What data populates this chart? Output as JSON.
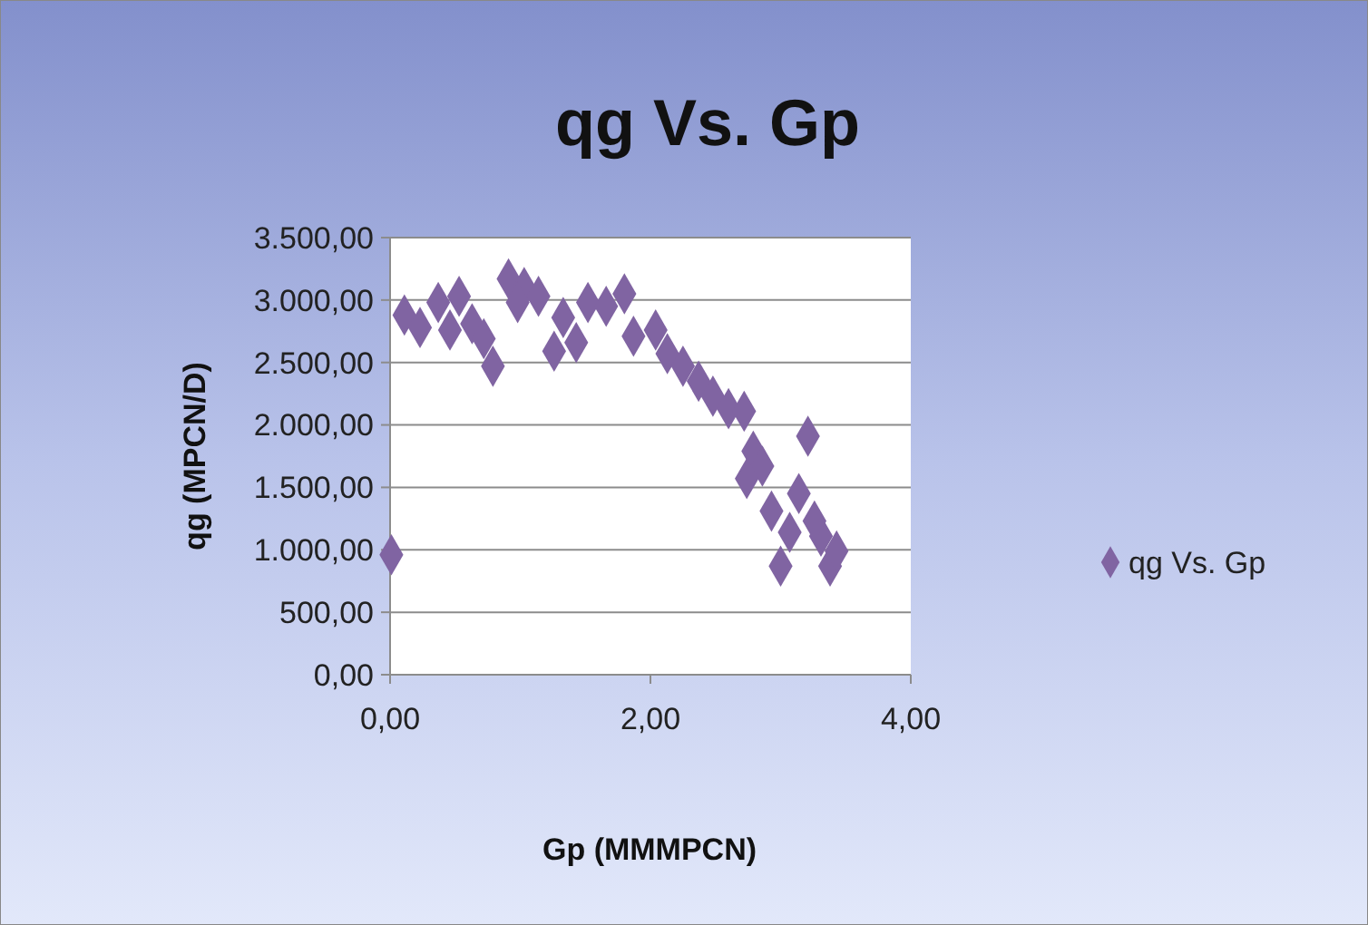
{
  "chart_data": {
    "type": "scatter",
    "title": "qg Vs. Gp",
    "xlabel": "Gp (MMMPCN)",
    "ylabel": "qg (MPCN/D)",
    "xlim": [
      0,
      4
    ],
    "xticks": [
      {
        "value": 0,
        "label": "0,00"
      },
      {
        "value": 2,
        "label": "2,00"
      },
      {
        "value": 4,
        "label": "4,00"
      }
    ],
    "ylim": [
      0,
      3500
    ],
    "yticks": [
      {
        "value": 0,
        "label": "0,00"
      },
      {
        "value": 500,
        "label": "500,00"
      },
      {
        "value": 1000,
        "label": "1.000,00"
      },
      {
        "value": 1500,
        "label": "1.500,00"
      },
      {
        "value": 2000,
        "label": "2.000,00"
      },
      {
        "value": 2500,
        "label": "2.500,00"
      },
      {
        "value": 3000,
        "label": "3.000,00"
      },
      {
        "value": 3500,
        "label": "3.500,00"
      }
    ],
    "grid": "y",
    "legend": "right",
    "marker": "diamond",
    "series": [
      {
        "name": "qg Vs. Gp",
        "color": "#8064a2",
        "x": [
          0.01,
          0.11,
          0.23,
          0.37,
          0.53,
          0.46,
          0.63,
          0.72,
          0.79,
          0.91,
          1.03,
          0.98,
          1.14,
          1.26,
          1.43,
          1.33,
          1.52,
          1.66,
          1.8,
          1.87,
          2.04,
          2.13,
          2.25,
          2.37,
          2.48,
          2.6,
          2.72,
          2.79,
          2.86,
          2.74,
          3.21,
          3.14,
          2.93,
          3.07,
          3.0,
          3.31,
          3.38,
          3.43,
          3.26
        ],
        "values": [
          960,
          2880,
          2780,
          2980,
          3030,
          2760,
          2810,
          2690,
          2470,
          3170,
          3100,
          2980,
          3030,
          2590,
          2660,
          2860,
          2980,
          2950,
          3050,
          2710,
          2760,
          2570,
          2470,
          2350,
          2230,
          2130,
          2110,
          1790,
          1670,
          1570,
          1910,
          1450,
          1310,
          1140,
          870,
          1110,
          870,
          990,
          1230
        ]
      }
    ]
  }
}
